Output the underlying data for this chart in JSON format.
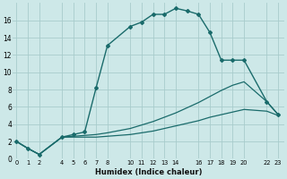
{
  "xlabel": "Humidex (Indice chaleur)",
  "background_color": "#cde8e8",
  "grid_color": "#a8cccc",
  "line_color": "#1a6b6b",
  "series": [
    {
      "x": [
        0,
        1,
        2,
        4,
        5,
        6,
        7,
        8,
        10,
        11,
        12,
        13,
        14,
        15,
        16,
        17,
        18,
        19,
        20,
        22,
        23
      ],
      "y": [
        2.0,
        1.2,
        0.5,
        2.5,
        2.8,
        3.1,
        8.2,
        13.1,
        15.3,
        15.8,
        16.7,
        16.7,
        17.4,
        17.1,
        16.7,
        14.6,
        11.4,
        11.4,
        11.4,
        6.6,
        5.1
      ],
      "marker": "D",
      "markersize": 2.0,
      "linewidth": 1.0,
      "linestyle": "-"
    },
    {
      "x": [
        0,
        1,
        2,
        4,
        5,
        6,
        7,
        8,
        10,
        11,
        12,
        13,
        14,
        15,
        16,
        17,
        18,
        19,
        20,
        22,
        23
      ],
      "y": [
        2.0,
        1.2,
        0.5,
        2.5,
        2.6,
        2.7,
        2.8,
        3.0,
        3.5,
        3.9,
        4.3,
        4.8,
        5.3,
        5.9,
        6.5,
        7.2,
        7.9,
        8.5,
        8.9,
        6.6,
        5.1
      ],
      "marker": null,
      "markersize": 0,
      "linewidth": 0.9,
      "linestyle": "-"
    },
    {
      "x": [
        0,
        1,
        2,
        4,
        5,
        6,
        7,
        8,
        10,
        11,
        12,
        13,
        14,
        15,
        16,
        17,
        18,
        19,
        20,
        22,
        23
      ],
      "y": [
        2.0,
        1.2,
        0.5,
        2.5,
        2.5,
        2.5,
        2.5,
        2.6,
        2.8,
        3.0,
        3.2,
        3.5,
        3.8,
        4.1,
        4.4,
        4.8,
        5.1,
        5.4,
        5.7,
        5.5,
        5.0
      ],
      "marker": null,
      "markersize": 0,
      "linewidth": 0.9,
      "linestyle": "-"
    }
  ],
  "xlim": [
    -0.3,
    23.5
  ],
  "ylim": [
    0,
    18
  ],
  "yticks": [
    0,
    2,
    4,
    6,
    8,
    10,
    12,
    14,
    16
  ],
  "xticks": [
    0,
    1,
    2,
    4,
    5,
    6,
    7,
    8,
    10,
    11,
    12,
    13,
    14,
    16,
    17,
    18,
    19,
    20,
    22,
    23
  ],
  "xtick_labels": [
    "0",
    "1",
    "2",
    "4",
    "5",
    "6",
    "7",
    "8",
    "10",
    "11",
    "12",
    "13",
    "14",
    "16",
    "17",
    "18",
    "19",
    "20",
    "22",
    "23"
  ],
  "xlabel_fontsize": 6.0,
  "ytick_fontsize": 5.5,
  "xtick_fontsize": 4.8
}
